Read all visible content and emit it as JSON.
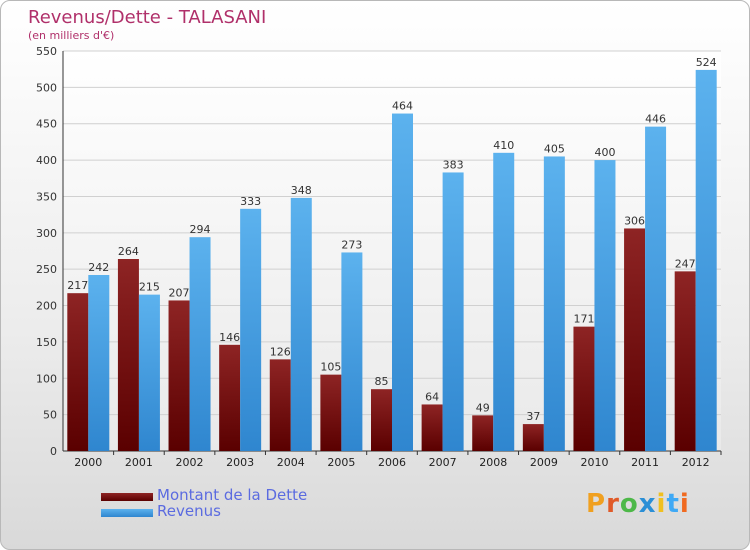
{
  "chart_data": {
    "type": "bar",
    "title": "Revenus/Dette - TALASANI",
    "subtitle": "(en milliers d'€)",
    "categories": [
      "2000",
      "2001",
      "2002",
      "2003",
      "2004",
      "2005",
      "2006",
      "2007",
      "2008",
      "2009",
      "2010",
      "2011",
      "2012"
    ],
    "series": [
      {
        "name": "Montant de la Dette",
        "values": [
          217,
          264,
          207,
          146,
          126,
          105,
          85,
          64,
          49,
          37,
          171,
          306,
          247
        ],
        "color": "#7a1010"
      },
      {
        "name": "Revenus",
        "values": [
          242,
          215,
          294,
          333,
          348,
          273,
          464,
          383,
          410,
          405,
          400,
          446,
          524
        ],
        "color": "#4aa3e6"
      }
    ],
    "ylim": [
      0,
      550
    ],
    "yticks": [
      0,
      50,
      100,
      150,
      200,
      250,
      300,
      350,
      400,
      450,
      500,
      550
    ],
    "grid": true,
    "legend": "bottom-left"
  },
  "logo": {
    "text": "Proxiti"
  }
}
